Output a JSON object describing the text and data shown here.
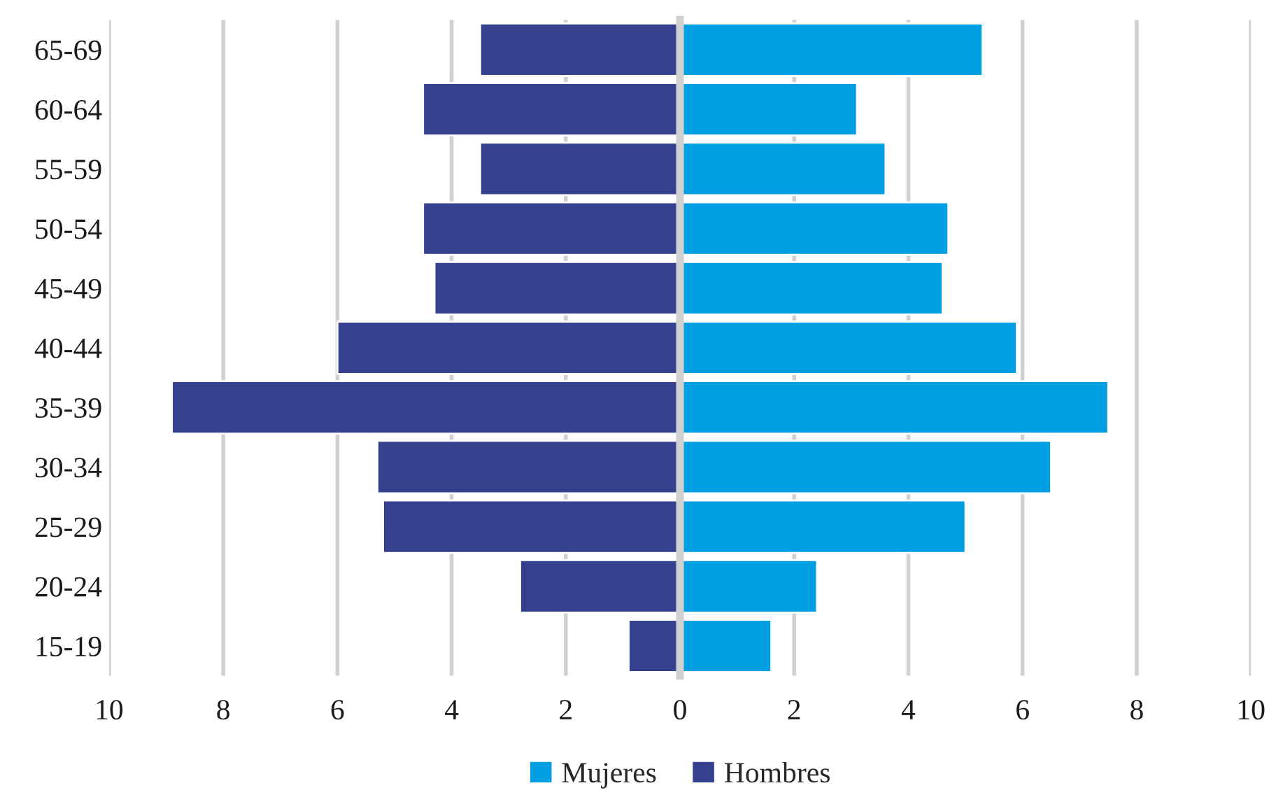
{
  "chart_data": {
    "type": "bar",
    "orientation": "horizontal",
    "categories": [
      "65-69",
      "60-64",
      "55-59",
      "50-54",
      "45-49",
      "40-44",
      "35-39",
      "30-34",
      "25-29",
      "20-24",
      "15-19"
    ],
    "series": [
      {
        "name": "Mujeres",
        "color": "#009fe3",
        "values": [
          5.3,
          3.1,
          3.6,
          4.7,
          4.6,
          5.9,
          7.5,
          6.5,
          5.0,
          2.4,
          1.6
        ]
      },
      {
        "name": "Hombres",
        "color": "#35408f",
        "values": [
          -3.5,
          -4.5,
          -3.5,
          -4.5,
          -4.3,
          -6.0,
          -8.9,
          -5.3,
          -5.2,
          -2.8,
          -0.9
        ]
      }
    ],
    "xlim": [
      -10,
      10
    ],
    "xticks": [
      {
        "value": -10,
        "label": "10"
      },
      {
        "value": -8,
        "label": "8"
      },
      {
        "value": -6,
        "label": "6"
      },
      {
        "value": -4,
        "label": "4"
      },
      {
        "value": -2,
        "label": "2"
      },
      0,
      2,
      4,
      6,
      8,
      10
    ],
    "grid": "x",
    "legend": "bottom",
    "stacked": true
  }
}
